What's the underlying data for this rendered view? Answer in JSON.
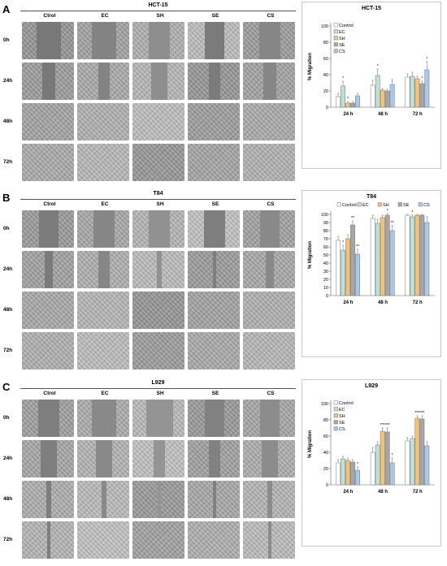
{
  "colors": {
    "Control": "#ffffff",
    "EC": "#bfe0d6",
    "SH": "#f3c27a",
    "SE": "#a6a6a6",
    "CS": "#a9c8ec",
    "cell_dark": "#8a8a8a",
    "cell_light": "#c8c8c8"
  },
  "panels": [
    {
      "letter": "A",
      "title": "HCT-15",
      "columns": [
        "Ctrol",
        "EC",
        "SH",
        "SE",
        "CS"
      ],
      "rows": [
        "0h",
        "24h",
        "48h",
        "72h"
      ],
      "open_fraction": [
        [
          0.45,
          0.45,
          0.4,
          0.35,
          0.4
        ],
        [
          0.25,
          0.2,
          0.3,
          0.2,
          0.25
        ],
        [
          0.0,
          0.0,
          0.0,
          0.0,
          0.0
        ],
        [
          0.0,
          0.0,
          0.0,
          0.0,
          0.0
        ]
      ]
    },
    {
      "letter": "B",
      "title": "T84",
      "columns": [
        "Ctrol",
        "EC",
        "SH",
        "SE",
        "CS"
      ],
      "rows": [
        "0h",
        "24h",
        "48h",
        "72h"
      ],
      "open_fraction": [
        [
          0.35,
          0.4,
          0.4,
          0.4,
          0.35
        ],
        [
          0.15,
          0.2,
          0.1,
          0.05,
          0.15
        ],
        [
          0.0,
          0.0,
          0.0,
          0.0,
          0.0
        ],
        [
          0.0,
          0.0,
          0.0,
          0.0,
          0.0
        ]
      ]
    },
    {
      "letter": "C",
      "title": "L929",
      "columns": [
        "Ctrol",
        "EC",
        "SH",
        "SE",
        "CS"
      ],
      "rows": [
        "0h",
        "24h",
        "48h",
        "72h"
      ],
      "open_fraction": [
        [
          0.4,
          0.45,
          0.5,
          0.35,
          0.35
        ],
        [
          0.3,
          0.3,
          0.2,
          0.2,
          0.3
        ],
        [
          0.1,
          0.1,
          0.05,
          0.05,
          0.1
        ],
        [
          0.05,
          0.0,
          0.0,
          0.0,
          0.05
        ]
      ]
    }
  ],
  "chart_data": [
    {
      "type": "bar",
      "title": "HCT-15",
      "ylabel": "% Migration",
      "ylim": [
        0,
        100
      ],
      "yticks": [
        0,
        20,
        40,
        60,
        80,
        100
      ],
      "categories": [
        "24 h",
        "48 h",
        "72 h"
      ],
      "legend": "top-left",
      "series": [
        {
          "name": "Control",
          "values": [
            13,
            27,
            37
          ],
          "errors": [
            4,
            6,
            4
          ],
          "marks": [
            "",
            "",
            ""
          ]
        },
        {
          "name": "EC",
          "values": [
            26,
            39,
            38
          ],
          "errors": [
            6,
            8,
            5
          ],
          "marks": [
            "*",
            "*",
            ""
          ]
        },
        {
          "name": "SH",
          "values": [
            5,
            21,
            35
          ],
          "errors": [
            2,
            2,
            3
          ],
          "marks": [
            "*",
            "",
            ""
          ]
        },
        {
          "name": "SE",
          "values": [
            5,
            20,
            29
          ],
          "errors": [
            2,
            2,
            3
          ],
          "marks": [
            "",
            "",
            "*"
          ]
        },
        {
          "name": "CS",
          "values": [
            14,
            28,
            46
          ],
          "errors": [
            3,
            6,
            10
          ],
          "marks": [
            "",
            "",
            "*"
          ]
        }
      ]
    },
    {
      "type": "bar",
      "title": "T84",
      "ylabel": "% Migration",
      "ylim": [
        0,
        100
      ],
      "yticks": [
        0,
        10,
        20,
        30,
        40,
        50,
        60,
        70,
        80,
        90,
        100
      ],
      "categories": [
        "24 h",
        "48 h",
        "72 h"
      ],
      "legend": "top",
      "series": [
        {
          "name": "Control",
          "values": [
            68,
            95,
            99
          ],
          "errors": [
            5,
            4,
            1
          ],
          "marks": [
            "",
            "",
            ""
          ]
        },
        {
          "name": "EC",
          "values": [
            56,
            89,
            97
          ],
          "errors": [
            6,
            5,
            2
          ],
          "marks": [
            "*",
            "",
            "*"
          ]
        },
        {
          "name": "SH",
          "values": [
            70,
            96,
            99
          ],
          "errors": [
            5,
            3,
            1
          ],
          "marks": [
            "",
            "",
            ""
          ]
        },
        {
          "name": "SE",
          "values": [
            87,
            99,
            99
          ],
          "errors": [
            5,
            2,
            1
          ],
          "marks": [
            "**",
            "*",
            ""
          ]
        },
        {
          "name": "CS",
          "values": [
            51,
            80,
            90
          ],
          "errors": [
            6,
            6,
            7
          ],
          "marks": [
            "**",
            "**",
            ""
          ]
        }
      ]
    },
    {
      "type": "bar",
      "title": "L929",
      "ylabel": "% Migration",
      "ylim": [
        0,
        100
      ],
      "yticks": [
        0,
        20,
        40,
        60,
        80,
        100
      ],
      "categories": [
        "24 h",
        "48 h",
        "72 h"
      ],
      "legend": "top-left",
      "series": [
        {
          "name": "Control",
          "values": [
            27,
            40,
            54
          ],
          "errors": [
            4,
            6,
            4
          ],
          "marks": [
            "",
            "",
            ""
          ]
        },
        {
          "name": "EC",
          "values": [
            32,
            49,
            57
          ],
          "errors": [
            3,
            4,
            3
          ],
          "marks": [
            "",
            "",
            ""
          ]
        },
        {
          "name": "SH",
          "values": [
            30,
            66,
            82
          ],
          "errors": [
            3,
            4,
            3
          ],
          "marks": [
            "",
            "***",
            "***"
          ]
        },
        {
          "name": "SE",
          "values": [
            28,
            65,
            81
          ],
          "errors": [
            3,
            5,
            4
          ],
          "marks": [
            "",
            "***",
            "***"
          ]
        },
        {
          "name": "CS",
          "values": [
            18,
            27,
            48
          ],
          "errors": [
            4,
            6,
            5
          ],
          "marks": [
            "*",
            "*",
            ""
          ]
        }
      ]
    }
  ]
}
